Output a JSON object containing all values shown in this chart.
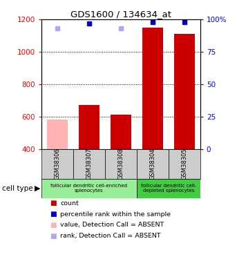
{
  "title": "GDS1600 / 134634_at",
  "samples": [
    "GSM38306",
    "GSM38307",
    "GSM38308",
    "GSM38304",
    "GSM38305"
  ],
  "counts": [
    null,
    670,
    610,
    1150,
    1110
  ],
  "counts_absent": [
    580,
    null,
    null,
    null,
    null
  ],
  "ranks_present": [
    null,
    1175,
    null,
    1185,
    1185
  ],
  "ranks_absent": [
    1145,
    null,
    1145,
    null,
    null
  ],
  "ylim_left": [
    400,
    1200
  ],
  "ylim_right": [
    0,
    100
  ],
  "yticks_left": [
    400,
    600,
    800,
    1000,
    1200
  ],
  "yticks_right": [
    0,
    25,
    50,
    75,
    100
  ],
  "right_tick_labels": [
    "0",
    "25",
    "50",
    "75",
    "100%"
  ],
  "bar_color": "#cc0000",
  "bar_absent_color": "#ffb3b3",
  "rank_color": "#0000cc",
  "rank_absent_color": "#aaaaee",
  "sample_bg_color": "#cccccc",
  "group1_color": "#99ee99",
  "group2_color": "#44cc44",
  "group1_label": "follicular dendritic cell-enriched\nsplenocytes",
  "group2_label": "follicular dendritic cell-\ndepleted splenocytes",
  "group1_samples": [
    0,
    1,
    2
  ],
  "group2_samples": [
    3,
    4
  ],
  "cell_type_label": "cell type",
  "legend_items": [
    {
      "label": "count",
      "color": "#cc0000"
    },
    {
      "label": "percentile rank within the sample",
      "color": "#0000cc"
    },
    {
      "label": "value, Detection Call = ABSENT",
      "color": "#ffb3b3"
    },
    {
      "label": "rank, Detection Call = ABSENT",
      "color": "#aaaaee"
    }
  ]
}
